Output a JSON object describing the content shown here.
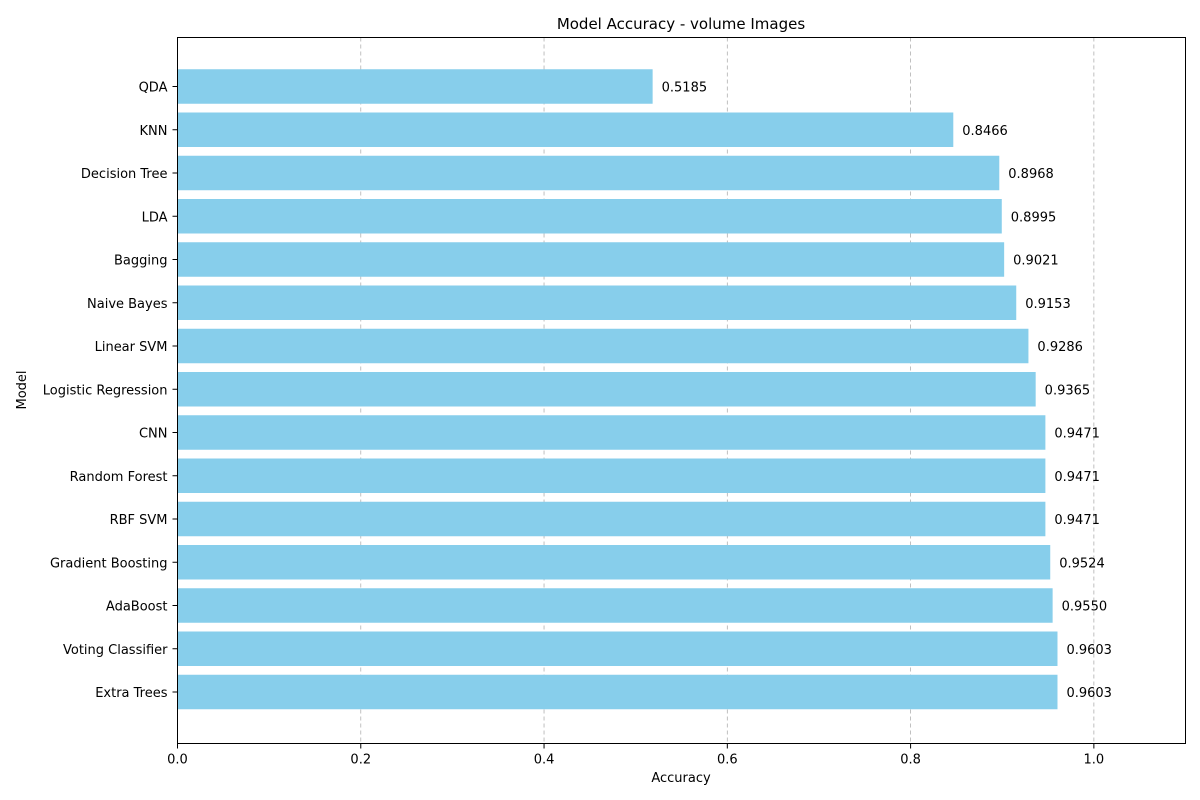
{
  "chart_data": {
    "type": "bar",
    "orientation": "horizontal",
    "title": "Model Accuracy - volume Images",
    "xlabel": "Accuracy",
    "ylabel": "Model",
    "xlim": [
      0,
      1.1
    ],
    "xticks": [
      0.0,
      0.2,
      0.4,
      0.6,
      0.8,
      1.0
    ],
    "xtick_labels": [
      "0.0",
      "0.2",
      "0.4",
      "0.6",
      "0.8",
      "1.0"
    ],
    "grid": "x-dashed",
    "bar_color": "#87ceeb",
    "categories": [
      "QDA",
      "KNN",
      "Decision Tree",
      "LDA",
      "Bagging",
      "Naive Bayes",
      "Linear SVM",
      "Logistic Regression",
      "CNN",
      "Random Forest",
      "RBF SVM",
      "Gradient Boosting",
      "AdaBoost",
      "Voting Classifier",
      "Extra Trees"
    ],
    "values": [
      0.5185,
      0.8466,
      0.8968,
      0.8995,
      0.9021,
      0.9153,
      0.9286,
      0.9365,
      0.9471,
      0.9471,
      0.9471,
      0.9524,
      0.955,
      0.9603,
      0.9603
    ],
    "value_labels": [
      "0.5185",
      "0.8466",
      "0.8968",
      "0.8995",
      "0.9021",
      "0.9153",
      "0.9286",
      "0.9365",
      "0.9471",
      "0.9471",
      "0.9471",
      "0.9524",
      "0.9550",
      "0.9603",
      "0.9603"
    ]
  }
}
